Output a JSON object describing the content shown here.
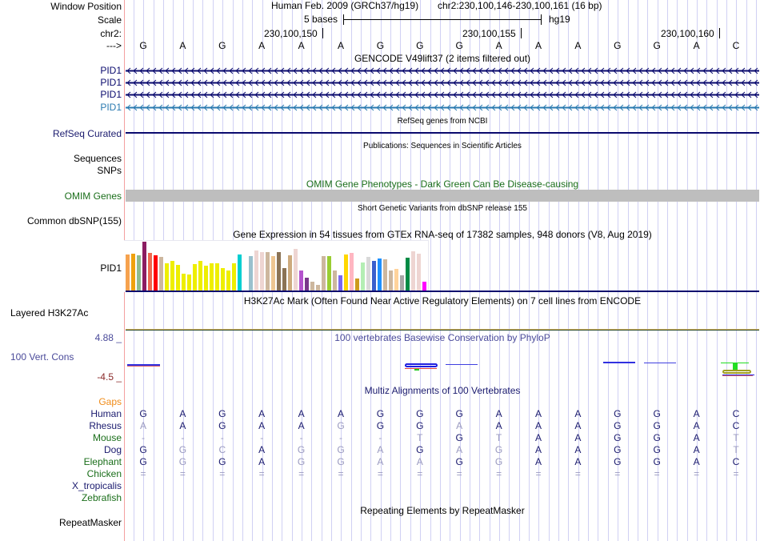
{
  "header": {
    "window_position_label": "Window Position",
    "scale_label": "Scale",
    "chrom_label": "chr2:",
    "strand_label": "--->",
    "assembly_title": "Human Feb. 2009 (GRCh37/hg19)",
    "position": "chr2:230,100,146-230,100,161 (16 bp)",
    "scale_text": "5 bases",
    "scale_db": "hg19",
    "ticks": [
      "230,100,150",
      "230,100,155",
      "230,100,160"
    ]
  },
  "sequence": [
    "G",
    "A",
    "G",
    "A",
    "A",
    "A",
    "G",
    "G",
    "G",
    "A",
    "A",
    "A",
    "G",
    "G",
    "A",
    "C"
  ],
  "tracks": {
    "gencode": {
      "title": "GENCODE V49lift37 (2 items filtered out)",
      "items": [
        "PID1",
        "PID1",
        "PID1",
        "PID1"
      ],
      "colors": [
        "#0a0a6e",
        "#0a0a6e",
        "#0a0a6e",
        "#2a7ab0"
      ]
    },
    "refseq": {
      "label": "RefSeq Curated",
      "title": "RefSeq genes from NCBI"
    },
    "publications": {
      "label_1": "Sequences",
      "label_2": "SNPs",
      "title": "Publications: Sequences in Scientific Articles"
    },
    "omim": {
      "label": "OMIM Genes",
      "title": "OMIM Gene Phenotypes - Dark Green Can Be Disease-causing"
    },
    "dbsnp": {
      "label": "Common dbSNP(155)",
      "title": "Short Genetic Variants from dbSNP release 155"
    },
    "gtex": {
      "label": "PID1",
      "title": "Gene Expression in 54 tissues from GTEx RNA-seq of 17382 samples, 948 donors (V8, Aug 2019)",
      "bars": [
        {
          "c": "#f6a24e",
          "v": 0.74
        },
        {
          "c": "#efa10d",
          "v": 0.76
        },
        {
          "c": "#8fbc8f",
          "v": 0.72
        },
        {
          "c": "#8b1c62",
          "v": 1.0
        },
        {
          "c": "#ee6a50",
          "v": 0.77
        },
        {
          "c": "#ff0000",
          "v": 0.72
        },
        {
          "c": "#cdb79e",
          "v": 0.7
        },
        {
          "c": "#eeee00",
          "v": 0.56
        },
        {
          "c": "#eeee00",
          "v": 0.62
        },
        {
          "c": "#eeee00",
          "v": 0.53
        },
        {
          "c": "#eeee00",
          "v": 0.36
        },
        {
          "c": "#eeee00",
          "v": 0.34
        },
        {
          "c": "#eeee00",
          "v": 0.55
        },
        {
          "c": "#eeee00",
          "v": 0.62
        },
        {
          "c": "#eeee00",
          "v": 0.52
        },
        {
          "c": "#eeee00",
          "v": 0.56
        },
        {
          "c": "#eeee00",
          "v": 0.56
        },
        {
          "c": "#eeee00",
          "v": 0.46
        },
        {
          "c": "#eeee00",
          "v": 0.42
        },
        {
          "c": "#eeee00",
          "v": 0.56
        },
        {
          "c": "#00ced1",
          "v": 0.74
        },
        {
          "c": "#ffffff",
          "v": 0.0
        },
        {
          "c": "#9ac0cd",
          "v": 0.71
        },
        {
          "c": "#eed5d2",
          "v": 0.83
        },
        {
          "c": "#eed5d2",
          "v": 0.79
        },
        {
          "c": "#cdb79e",
          "v": 0.79
        },
        {
          "c": "#eec591",
          "v": 0.71
        },
        {
          "c": "#8b7355",
          "v": 0.79
        },
        {
          "c": "#8b7355",
          "v": 0.47
        },
        {
          "c": "#cdaa7d",
          "v": 0.73
        },
        {
          "c": "#eed5d2",
          "v": 0.85
        },
        {
          "c": "#b452cd",
          "v": 0.42
        },
        {
          "c": "#7a378b",
          "v": 0.28
        },
        {
          "c": "#cdb79e",
          "v": 0.19
        },
        {
          "c": "#cdb79e",
          "v": 0.13
        },
        {
          "c": "#cdb79e",
          "v": 0.71
        },
        {
          "c": "#9acd32",
          "v": 0.71
        },
        {
          "c": "#cdb79e",
          "v": 0.42
        },
        {
          "c": "#7b68ee",
          "v": 0.32
        },
        {
          "c": "#ffd700",
          "v": 0.74
        },
        {
          "c": "#ffb6c1",
          "v": 0.77
        },
        {
          "c": "#cd9b1d",
          "v": 0.25
        },
        {
          "c": "#b4eeb4",
          "v": 0.58
        },
        {
          "c": "#d9d9d9",
          "v": 0.69
        },
        {
          "c": "#3a5fcd",
          "v": 0.61
        },
        {
          "c": "#1e90ff",
          "v": 0.66
        },
        {
          "c": "#cdb79e",
          "v": 0.65
        },
        {
          "c": "#cdb79e",
          "v": 0.42
        },
        {
          "c": "#ffd39b",
          "v": 0.45
        },
        {
          "c": "#a6a6a6",
          "v": 0.33
        },
        {
          "c": "#008b45",
          "v": 0.67
        },
        {
          "c": "#eed5d2",
          "v": 0.8
        },
        {
          "c": "#eed5d2",
          "v": 0.75
        },
        {
          "c": "#ff00ff",
          "v": 0.2
        }
      ]
    },
    "h3k27ac": {
      "label": "Layered H3K27Ac",
      "title": "H3K27Ac Mark (Often Found Near Active Regulatory Elements) on 7 cell lines from ENCODE"
    },
    "cons": {
      "label": "100 Vert. Cons",
      "max": "4.88 _",
      "min": "-4.5 _",
      "title": "100 vertebrates Basewise Conservation by PhyloP"
    },
    "multiz": {
      "title": "Multiz Alignments of 100 Vertebrates",
      "gaps_label": "Gaps",
      "species": [
        {
          "name": "Human",
          "color": "navy",
          "seq": [
            "G",
            "A",
            "G",
            "A",
            "A",
            "A",
            "G",
            "G",
            "G",
            "A",
            "A",
            "A",
            "G",
            "G",
            "A",
            "C"
          ],
          "faint": []
        },
        {
          "name": "Rhesus",
          "color": "navy",
          "seq": [
            "A",
            "A",
            "G",
            "A",
            "A",
            "G",
            "G",
            "G",
            "A",
            "A",
            "A",
            "A",
            "G",
            "G",
            "A",
            "C"
          ],
          "faint": [
            0,
            5,
            8
          ]
        },
        {
          "name": "Mouse",
          "color": "green",
          "seq": [
            "-",
            "-",
            "-",
            "-",
            "-",
            "-",
            "-",
            "T",
            "G",
            "T",
            "A",
            "A",
            "G",
            "G",
            "A",
            "T"
          ],
          "faint": [
            0,
            1,
            2,
            3,
            4,
            5,
            6,
            7,
            9,
            15
          ]
        },
        {
          "name": "Dog",
          "color": "navy",
          "seq": [
            "G",
            "G",
            "C",
            "A",
            "G",
            "G",
            "A",
            "G",
            "A",
            "G",
            "A",
            "A",
            "G",
            "G",
            "A",
            "T"
          ],
          "faint": [
            1,
            2,
            4,
            5,
            6,
            8,
            9,
            15
          ]
        },
        {
          "name": "Elephant",
          "color": "green",
          "seq": [
            "G",
            "G",
            "G",
            "A",
            "G",
            "G",
            "A",
            "A",
            "G",
            "G",
            "A",
            "A",
            "G",
            "G",
            "A",
            "C"
          ],
          "faint": [
            1,
            4,
            5,
            6,
            7,
            9
          ]
        },
        {
          "name": "Chicken",
          "color": "green",
          "seq": [
            "=",
            "=",
            "=",
            "=",
            "=",
            "=",
            "=",
            "=",
            "=",
            "=",
            "=",
            "=",
            "=",
            "=",
            "=",
            "="
          ],
          "faint": [
            0,
            1,
            2,
            3,
            4,
            5,
            6,
            7,
            8,
            9,
            10,
            11,
            12,
            13,
            14,
            15
          ]
        },
        {
          "name": "X_tropicalis",
          "color": "navy",
          "seq": [],
          "faint": []
        },
        {
          "name": "Zebrafish",
          "color": "green",
          "seq": [],
          "faint": []
        }
      ]
    },
    "repeatmasker": {
      "label": "RepeatMasker",
      "title": "Repeating Elements by RepeatMasker"
    }
  }
}
